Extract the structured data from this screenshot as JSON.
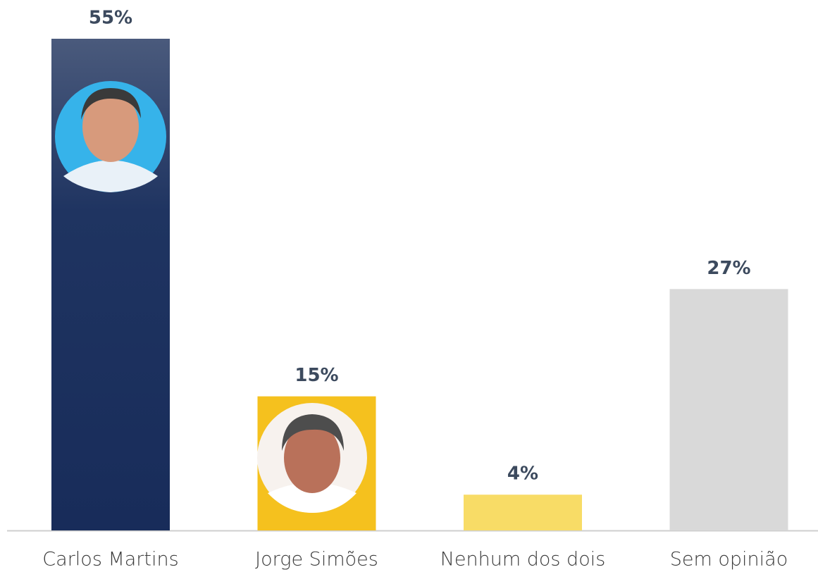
{
  "chart_data": {
    "type": "bar",
    "categories": [
      "Carlos Martins",
      "Jorge Simões",
      "Nenhum dos dois",
      "Sem opinião"
    ],
    "values": [
      55,
      15,
      4,
      27
    ],
    "value_labels": [
      "55%",
      "15%",
      "4%",
      "27%"
    ],
    "colors": [
      "#1f3461",
      "#f5c11e",
      "#f8dc66",
      "#d9d9d9"
    ]
  }
}
